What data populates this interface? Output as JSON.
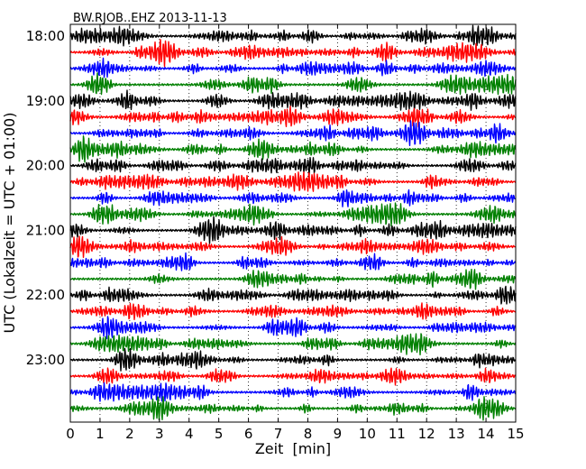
{
  "chart_data": {
    "type": "line",
    "title": "BW.RJOB..EHZ 2013-11-13",
    "xlabel": "Zeit  [min]",
    "ylabel": "UTC (Lokalzeit = UTC + 01:00)",
    "xlim": [
      0,
      15
    ],
    "x_ticks": [
      "0",
      "1",
      "2",
      "3",
      "4",
      "5",
      "6",
      "7",
      "8",
      "9",
      "10",
      "11",
      "12",
      "13",
      "14",
      "15"
    ],
    "y_tick_labels": [
      "18:00",
      "19:00",
      "20:00",
      "21:00",
      "22:00",
      "23:00"
    ],
    "row_start_times": [
      "18:00",
      "18:15",
      "18:30",
      "18:45",
      "19:00",
      "19:15",
      "19:30",
      "19:45",
      "20:00",
      "20:15",
      "20:30",
      "20:45",
      "21:00",
      "21:15",
      "21:30",
      "21:45",
      "22:00",
      "22:15",
      "22:30",
      "22:45",
      "23:00",
      "23:15",
      "23:30",
      "23:45"
    ],
    "trace_color_cycle": [
      "#000000",
      "#ff0000",
      "#0000ff",
      "#008000"
    ],
    "vertical_grid": "dotted, every 1 min",
    "series_note": "continuous seismic waveform, 15 min per row"
  }
}
